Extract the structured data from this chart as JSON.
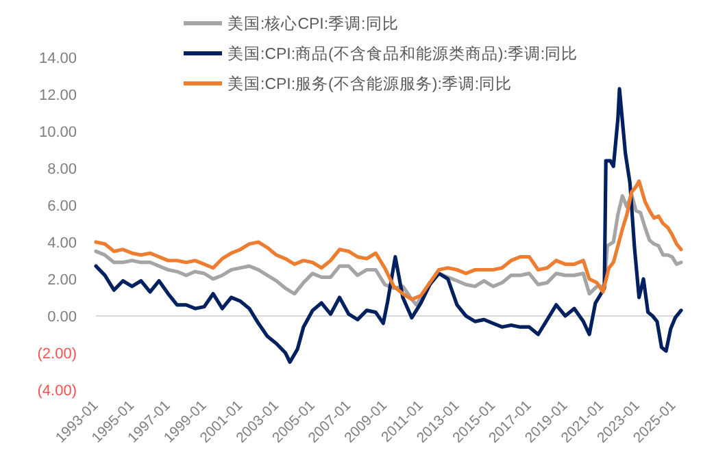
{
  "chart_data": {
    "type": "line",
    "x": [
      "1993-01",
      "1993-07",
      "1994-01",
      "1994-07",
      "1995-01",
      "1995-07",
      "1996-01",
      "1996-07",
      "1997-01",
      "1997-07",
      "1998-01",
      "1998-07",
      "1999-01",
      "1999-07",
      "2000-01",
      "2000-07",
      "2001-01",
      "2001-07",
      "2002-01",
      "2002-07",
      "2003-01",
      "2003-07",
      "2004-01",
      "2004-07",
      "2005-01",
      "2005-07",
      "2006-01",
      "2006-07",
      "2007-01",
      "2007-07",
      "2008-01",
      "2008-07",
      "2009-01",
      "2009-07",
      "2010-01",
      "2010-07",
      "2010-10",
      "2011-01",
      "2011-07",
      "2012-01",
      "2012-07",
      "2013-01",
      "2013-07",
      "2014-01",
      "2014-07",
      "2015-01",
      "2015-07",
      "2016-01",
      "2016-07",
      "2017-01",
      "2017-07",
      "2018-01",
      "2018-07",
      "2019-01",
      "2019-07",
      "2020-01",
      "2020-05",
      "2020-10",
      "2021-03",
      "2021-05",
      "2021-09",
      "2021-12",
      "2022-03",
      "2022-06",
      "2022-09",
      "2022-12",
      "2023-03",
      "2023-06",
      "2023-09",
      "2023-12",
      "2024-03",
      "2024-06",
      "2024-09",
      "2024-12",
      "2025-03",
      "2025-06"
    ],
    "series": [
      {
        "name": "美国:核心CPI:季调:同比",
        "color": "#a5a5a5",
        "values": [
          3.5,
          3.3,
          2.9,
          2.9,
          3.0,
          2.9,
          2.9,
          2.7,
          2.5,
          2.4,
          2.2,
          2.4,
          2.3,
          2.0,
          2.2,
          2.5,
          2.6,
          2.7,
          2.5,
          2.2,
          1.9,
          1.5,
          1.2,
          1.8,
          2.3,
          2.1,
          2.1,
          2.7,
          2.7,
          2.2,
          2.5,
          2.5,
          1.7,
          1.5,
          1.6,
          0.9,
          0.6,
          1.0,
          1.8,
          2.3,
          2.1,
          1.9,
          1.7,
          1.6,
          1.9,
          1.6,
          1.8,
          2.2,
          2.2,
          2.3,
          1.7,
          1.8,
          2.3,
          2.2,
          2.2,
          2.3,
          1.2,
          1.6,
          1.6,
          3.8,
          4.0,
          5.5,
          6.5,
          5.9,
          6.6,
          5.7,
          5.6,
          4.8,
          4.1,
          3.9,
          3.8,
          3.3,
          3.3,
          3.2,
          2.8,
          2.9
        ]
      },
      {
        "name": "美国:CPI:商品(不含食品和能源类商品):季调:同比",
        "color": "#002060",
        "x": [
          "1993-01",
          "1993-07",
          "1994-01",
          "1994-07",
          "1995-01",
          "1995-07",
          "1996-01",
          "1996-07",
          "1997-01",
          "1997-07",
          "1998-01",
          "1998-07",
          "1999-01",
          "1999-07",
          "2000-01",
          "2000-07",
          "2001-01",
          "2001-07",
          "2002-01",
          "2002-07",
          "2003-01",
          "2003-07",
          "2003-10",
          "2004-03",
          "2004-07",
          "2005-01",
          "2005-07",
          "2006-01",
          "2006-07",
          "2007-01",
          "2007-07",
          "2008-01",
          "2008-07",
          "2008-12",
          "2009-03",
          "2009-08",
          "2010-01",
          "2010-07",
          "2011-01",
          "2011-07",
          "2012-01",
          "2012-07",
          "2013-01",
          "2013-07",
          "2014-01",
          "2014-07",
          "2015-01",
          "2015-07",
          "2016-01",
          "2016-07",
          "2017-01",
          "2017-07",
          "2018-01",
          "2018-07",
          "2019-01",
          "2019-07",
          "2020-01",
          "2020-05",
          "2020-09",
          "2021-03",
          "2021-04",
          "2021-07",
          "2021-09",
          "2021-12",
          "2022-01",
          "2022-05",
          "2022-08",
          "2022-11",
          "2023-02",
          "2023-05",
          "2023-08",
          "2023-11",
          "2024-02",
          "2024-05",
          "2024-08",
          "2024-11",
          "2025-02",
          "2025-06"
        ],
        "values": [
          2.7,
          2.2,
          1.4,
          1.9,
          1.6,
          1.9,
          1.3,
          1.9,
          1.2,
          0.6,
          0.6,
          0.4,
          0.5,
          1.2,
          0.4,
          1.0,
          0.8,
          0.4,
          -0.4,
          -1.1,
          -1.5,
          -2.0,
          -2.5,
          -1.8,
          -0.6,
          0.3,
          0.7,
          0.1,
          1.0,
          0.1,
          -0.2,
          0.3,
          0.2,
          -0.4,
          0.8,
          3.2,
          1.0,
          -0.1,
          0.7,
          1.7,
          2.3,
          2.0,
          0.6,
          0.0,
          -0.3,
          -0.2,
          -0.4,
          -0.6,
          -0.5,
          -0.6,
          -0.6,
          -1.0,
          -0.2,
          0.6,
          0.0,
          0.4,
          -0.3,
          -1.0,
          0.7,
          1.5,
          8.4,
          8.4,
          8.1,
          10.7,
          12.3,
          8.8,
          7.2,
          3.7,
          1.0,
          2.0,
          0.2,
          0.0,
          -0.3,
          -1.7,
          -1.9,
          -0.7,
          -0.1,
          0.3
        ]
      },
      {
        "name": "美国:CPI:服务(不含能源服务):季调:同比",
        "color": "#ed7d31",
        "x": [
          "1993-01",
          "1993-07",
          "1994-01",
          "1994-07",
          "1995-01",
          "1995-07",
          "1996-01",
          "1996-07",
          "1997-01",
          "1997-07",
          "1998-01",
          "1998-07",
          "1999-01",
          "1999-07",
          "2000-01",
          "2000-07",
          "2001-01",
          "2001-07",
          "2002-01",
          "2002-07",
          "2003-01",
          "2003-07",
          "2004-01",
          "2004-07",
          "2005-01",
          "2005-07",
          "2006-01",
          "2006-07",
          "2007-01",
          "2007-07",
          "2008-01",
          "2008-07",
          "2009-01",
          "2009-07",
          "2010-01",
          "2010-07",
          "2011-01",
          "2011-07",
          "2012-01",
          "2012-07",
          "2013-01",
          "2013-07",
          "2014-01",
          "2014-07",
          "2015-01",
          "2015-07",
          "2016-01",
          "2016-07",
          "2017-01",
          "2017-07",
          "2018-01",
          "2018-07",
          "2019-01",
          "2019-07",
          "2020-01",
          "2020-05",
          "2020-10",
          "2021-02",
          "2021-06",
          "2021-09",
          "2021-12",
          "2022-03",
          "2022-06",
          "2022-09",
          "2022-12",
          "2023-02",
          "2023-06",
          "2023-09",
          "2023-12",
          "2024-03",
          "2024-06",
          "2024-09",
          "2024-12",
          "2025-03",
          "2025-06"
        ],
        "values": [
          4.0,
          3.9,
          3.5,
          3.6,
          3.4,
          3.3,
          3.4,
          3.2,
          3.0,
          3.0,
          2.9,
          3.0,
          2.8,
          2.6,
          3.1,
          3.4,
          3.6,
          3.9,
          4.0,
          3.7,
          3.3,
          3.1,
          2.8,
          3.0,
          2.9,
          2.6,
          3.0,
          3.6,
          3.5,
          3.2,
          3.1,
          3.4,
          2.6,
          1.6,
          1.2,
          0.9,
          1.1,
          1.8,
          2.5,
          2.6,
          2.5,
          2.3,
          2.5,
          2.5,
          2.5,
          2.6,
          3.0,
          3.2,
          3.2,
          2.5,
          2.6,
          3.0,
          2.8,
          2.8,
          3.0,
          2.0,
          1.8,
          1.3,
          2.6,
          2.9,
          3.8,
          4.7,
          5.5,
          6.7,
          7.0,
          7.3,
          6.2,
          5.7,
          5.3,
          5.4,
          5.0,
          4.8,
          4.4,
          3.9,
          3.6
        ]
      }
    ],
    "xlim": [
      "1993-01",
      "2025-06"
    ],
    "xticks": [
      "1993-01",
      "1995-01",
      "1997-01",
      "1999-01",
      "2001-01",
      "2003-01",
      "2005-01",
      "2007-01",
      "2009-01",
      "2011-01",
      "2013-01",
      "2015-01",
      "2017-01",
      "2019-01",
      "2021-01",
      "2023-01",
      "2025-01"
    ],
    "ylim": [
      -4,
      14
    ],
    "yticks": [
      {
        "value": -4,
        "label": "(4.00)"
      },
      {
        "value": -2,
        "label": "(2.00)"
      },
      {
        "value": 0,
        "label": "0.00"
      },
      {
        "value": 2,
        "label": "2.00"
      },
      {
        "value": 4,
        "label": "4.00"
      },
      {
        "value": 6,
        "label": "6.00"
      },
      {
        "value": 8,
        "label": "8.00"
      },
      {
        "value": 10,
        "label": "10.00"
      },
      {
        "value": 12,
        "label": "12.00"
      },
      {
        "value": 14,
        "label": "14.00"
      }
    ],
    "ref_lines": [
      {
        "axis": "y",
        "value": 0,
        "color": "#d9d9d9"
      }
    ],
    "legend": "top",
    "line_style": "solid"
  }
}
